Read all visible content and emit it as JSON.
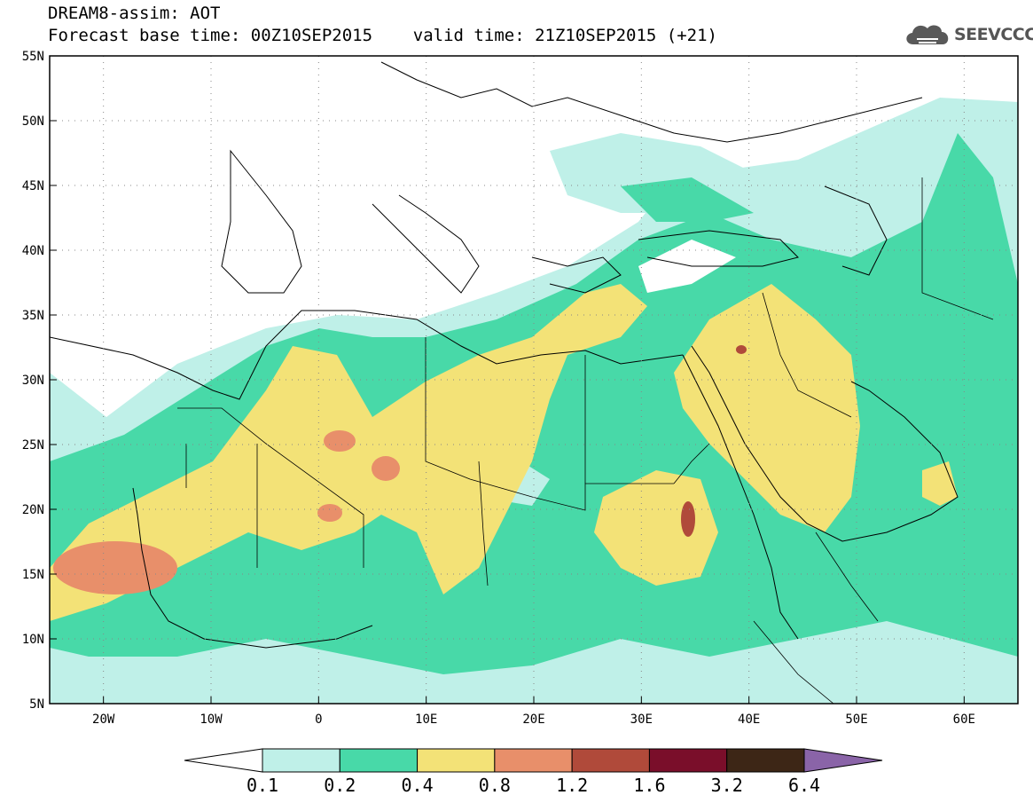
{
  "header": {
    "title_line1": "DREAM8-assim: AOT",
    "title_line2": "Forecast base time: 00Z10SEP2015    valid time: 21Z10SEP2015 (+21)"
  },
  "logo": {
    "text": "SEEVCCC",
    "icon": "cloud-icon",
    "color": "#595959"
  },
  "map": {
    "lon_range": [
      -25,
      65
    ],
    "lat_range": [
      5,
      55
    ],
    "lat_ticks": [
      "5N",
      "10N",
      "15N",
      "20N",
      "25N",
      "30N",
      "35N",
      "40N",
      "45N",
      "50N",
      "55N"
    ],
    "lon_ticks": [
      "20W",
      "10W",
      "0",
      "10E",
      "20E",
      "30E",
      "40E",
      "50E",
      "60E"
    ],
    "gridlines": "dotted"
  },
  "colorbar": {
    "labels": [
      "0.1",
      "0.2",
      "0.4",
      "0.8",
      "1.2",
      "1.6",
      "3.2",
      "6.4"
    ],
    "colors": [
      "#ffffff",
      "#bff0e8",
      "#48d9a8",
      "#f3e277",
      "#e88f6a",
      "#b04a3a",
      "#7a0e2a",
      "#3d2616",
      "#8a64a8"
    ]
  }
}
